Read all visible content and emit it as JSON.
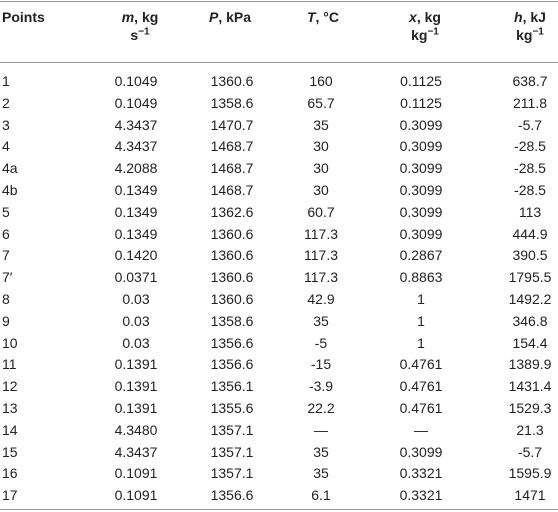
{
  "table": {
    "headers": [
      {
        "text": "Points"
      },
      {
        "symbol": "m",
        "rest": ", kg",
        "line2": "s",
        "sup": "−1"
      },
      {
        "symbol": "P",
        "rest": ", kPa"
      },
      {
        "symbol": "T",
        "rest": ", °C"
      },
      {
        "symbol": "x",
        "rest": ", kg",
        "line2": "kg",
        "sup": "−1"
      },
      {
        "symbol": "h",
        "rest": ", kJ",
        "line2": "kg",
        "sup": "−1"
      }
    ],
    "rows": [
      [
        "1",
        "0.1049",
        "1360.6",
        "160",
        "0.1125",
        "638.7"
      ],
      [
        "2",
        "0.1049",
        "1358.6",
        "65.7",
        "0.1125",
        "211.8"
      ],
      [
        "3",
        "4.3437",
        "1470.7",
        "35",
        "0.3099",
        "-5.7"
      ],
      [
        "4",
        "4.3437",
        "1468.7",
        "30",
        "0.3099",
        "-28.5"
      ],
      [
        "4a",
        "4.2088",
        "1468.7",
        "30",
        "0.3099",
        "-28.5"
      ],
      [
        "4b",
        "0.1349",
        "1468.7",
        "30",
        "0.3099",
        "-28.5"
      ],
      [
        "5",
        "0.1349",
        "1362.6",
        "60.7",
        "0.3099",
        "113"
      ],
      [
        "6",
        "0.1349",
        "1360.6",
        "117.3",
        "0.3099",
        "444.9"
      ],
      [
        "7",
        "0.1420",
        "1360.6",
        "117.3",
        "0.2867",
        "390.5"
      ],
      [
        "7′",
        "0.0371",
        "1360.6",
        "117.3",
        "0.8863",
        "1795.5"
      ],
      [
        "8",
        "0.03",
        "1360.6",
        "42.9",
        "1",
        "1492.2"
      ],
      [
        "9",
        "0.03",
        "1358.6",
        "35",
        "1",
        "346.8"
      ],
      [
        "10",
        "0.03",
        "1356.6",
        "-5",
        "1",
        "154.4"
      ],
      [
        "11",
        "0.1391",
        "1356.6",
        "-15",
        "0.4761",
        "1389.9"
      ],
      [
        "12",
        "0.1391",
        "1356.1",
        "-3.9",
        "0.4761",
        "1431.4"
      ],
      [
        "13",
        "0.1391",
        "1355.6",
        "22.2",
        "0.4761",
        "1529.3"
      ],
      [
        "14",
        "4.3480",
        "1357.1",
        "—",
        "—",
        "21.3"
      ],
      [
        "15",
        "4.3437",
        "1357.1",
        "35",
        "0.3099",
        "-5.7"
      ],
      [
        "16",
        "0.1091",
        "1357.1",
        "35",
        "0.3321",
        "1595.9"
      ],
      [
        "17",
        "0.1091",
        "1356.6",
        "6.1",
        "0.3321",
        "1471"
      ]
    ]
  }
}
